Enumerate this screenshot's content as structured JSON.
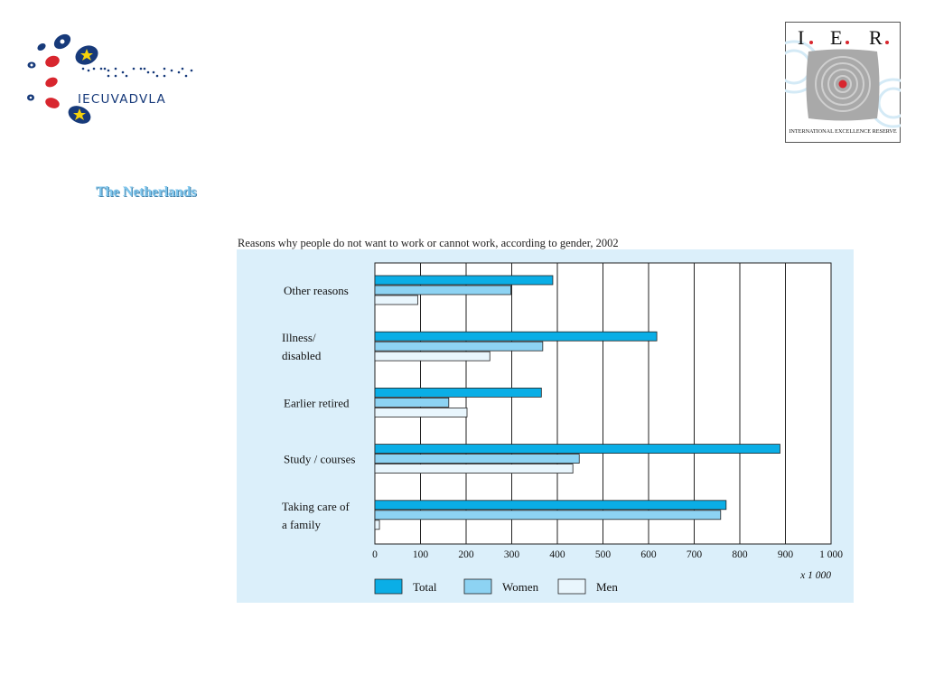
{
  "slide": {
    "title": "The Netherlands"
  },
  "logos": {
    "left_text": "IECUVADVLA",
    "right_letters": [
      "I",
      "E",
      "R"
    ],
    "right_caption": "INTERNATIONAL EXCELLENCE RESERVE"
  },
  "colors": {
    "title": "#7ec5ec",
    "panel_bg": "#dbeffa",
    "total": "#0aaee6",
    "women": "#8dd3f3",
    "men": "#e9f6fd",
    "logo_red": "#d8262e",
    "logo_navy": "#173a7a",
    "logo_star": "#f5d20a"
  },
  "chart_data": {
    "type": "bar",
    "orientation": "horizontal",
    "title": "Reasons why people do not want to work or cannot work, according to gender, 2002",
    "categories": [
      [
        "Other reasons"
      ],
      [
        "Illness/",
        "disabled"
      ],
      [
        "Earlier retired"
      ],
      [
        "Study / courses"
      ],
      [
        "Taking care of",
        "a family"
      ]
    ],
    "series": [
      {
        "name": "Total",
        "values": [
          390,
          618,
          365,
          888,
          770
        ]
      },
      {
        "name": "Women",
        "values": [
          298,
          368,
          162,
          448,
          758
        ]
      },
      {
        "name": "Men",
        "values": [
          94,
          252,
          202,
          434,
          10
        ]
      }
    ],
    "x_ticks": [
      "0",
      "100",
      "200",
      "300",
      "400",
      "500",
      "600",
      "700",
      "800",
      "900",
      "1 000"
    ],
    "xlim": [
      0,
      1000
    ],
    "x_unit": "x 1 000",
    "grid": true,
    "legend_position": "bottom-left"
  }
}
